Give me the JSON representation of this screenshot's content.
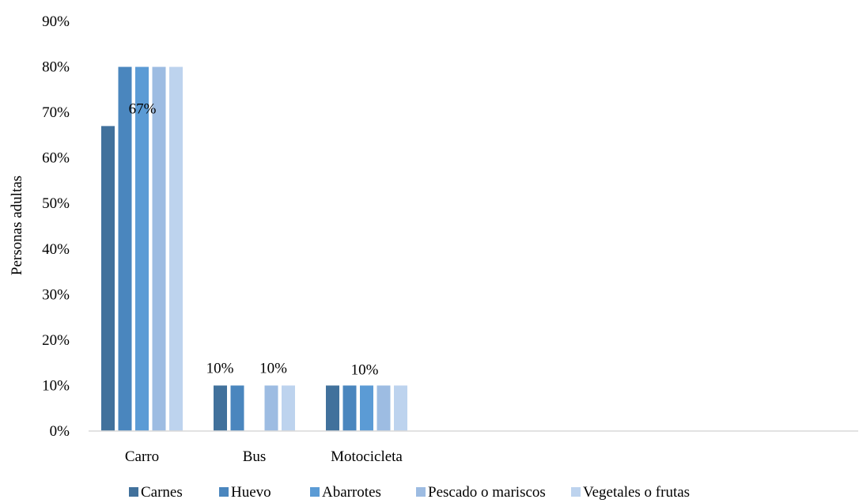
{
  "chart_data": {
    "type": "bar",
    "title": "",
    "xlabel": "",
    "ylabel": "Personas adultas",
    "ylim": [
      0,
      90
    ],
    "yticks": [
      0,
      10,
      20,
      30,
      40,
      50,
      60,
      70,
      80,
      90
    ],
    "ytick_format": "percent",
    "grid": false,
    "legend_position": "bottom",
    "categories": [
      "Carro",
      "Bus",
      "Motocicleta"
    ],
    "series": [
      {
        "name": "Carnes",
        "color": "#41719C",
        "values": [
          67,
          10,
          10
        ]
      },
      {
        "name": "Huevo",
        "color": "#4A86BE",
        "values": [
          80,
          10,
          10
        ]
      },
      {
        "name": "Abarrotes",
        "color": "#5B9BD5",
        "values": [
          80,
          null,
          10
        ]
      },
      {
        "name": "Pescado o mariscos",
        "color": "#9DBCE2",
        "values": [
          80,
          10,
          10
        ]
      },
      {
        "name": "Vegetales o frutas",
        "color": "#BDD3EE",
        "values": [
          80,
          10,
          10
        ]
      }
    ],
    "data_labels": [
      {
        "category": "Carro",
        "series": "Carnes",
        "text": "67%"
      },
      {
        "category": "Bus",
        "series": "Carnes",
        "text": "10%"
      },
      {
        "category": "Bus",
        "series": "Pescado o mariscos",
        "text": "10%"
      },
      {
        "category": "Motocicleta",
        "series": "Abarrotes",
        "text": "10%"
      }
    ]
  }
}
